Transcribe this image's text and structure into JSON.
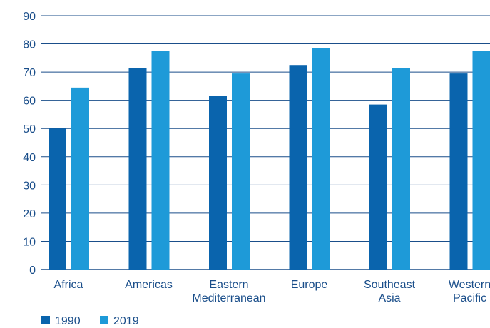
{
  "chart_data": {
    "type": "bar",
    "categories": [
      [
        "Africa"
      ],
      [
        "Americas"
      ],
      [
        "Eastern",
        "Mediterranean"
      ],
      [
        "Europe"
      ],
      [
        "Southeast",
        "Asia"
      ],
      [
        "Western",
        "Pacific"
      ]
    ],
    "series": [
      {
        "name": "1990",
        "color": "#0a64ad",
        "values": [
          50,
          71.5,
          61.5,
          72.5,
          58.5,
          69.5
        ]
      },
      {
        "name": "2019",
        "color": "#1e9ad8",
        "values": [
          64.5,
          77.5,
          69.5,
          78.5,
          71.5,
          77.5
        ]
      }
    ],
    "ylim": [
      0,
      90
    ],
    "yticks": [
      0,
      10,
      20,
      30,
      40,
      50,
      60,
      70,
      80,
      90
    ],
    "grid": true,
    "legend_position": "bottom-left",
    "axis_color": "#1a4e8a"
  }
}
